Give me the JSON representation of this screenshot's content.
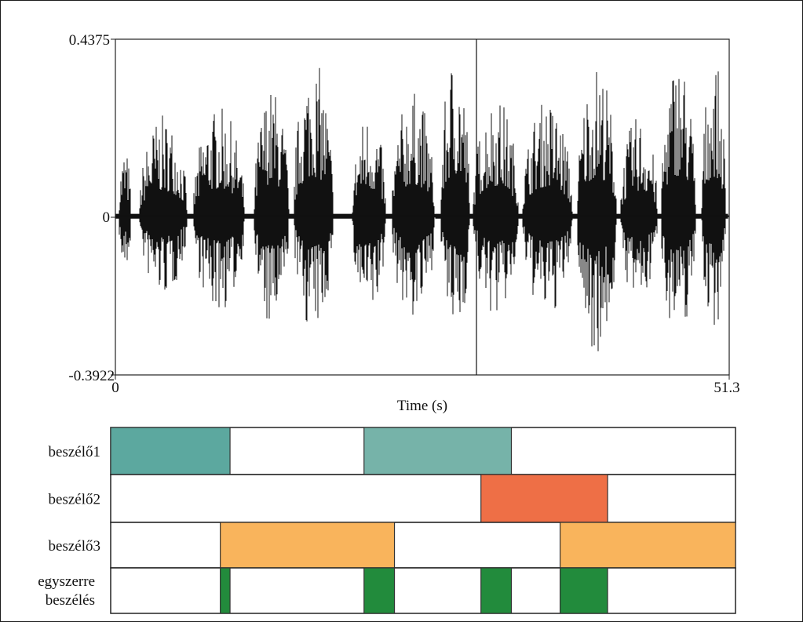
{
  "chart_data": [
    {
      "type": "waveform",
      "xlabel": "Time (s)",
      "xlim": [
        0,
        51.3
      ],
      "ylim": [
        -0.3922,
        0.4375
      ],
      "x_ticks": [
        "0",
        "51.3"
      ],
      "y_ticks": [
        "0.4375",
        "0",
        "-0.3922"
      ],
      "line_color": "#111111",
      "segments": [
        {
          "start": 0.3,
          "end": 1.3,
          "max": 0.17,
          "min": -0.15
        },
        {
          "start": 2.0,
          "end": 6.0,
          "max": 0.25,
          "min": -0.2
        },
        {
          "start": 6.5,
          "end": 10.8,
          "max": 0.27,
          "min": -0.24
        },
        {
          "start": 11.6,
          "end": 14.5,
          "max": 0.32,
          "min": -0.29
        },
        {
          "start": 14.9,
          "end": 18.2,
          "max": 0.39,
          "min": -0.29
        },
        {
          "start": 19.8,
          "end": 22.6,
          "max": 0.26,
          "min": -0.26
        },
        {
          "start": 23.1,
          "end": 26.7,
          "max": 0.31,
          "min": -0.26
        },
        {
          "start": 27.2,
          "end": 29.6,
          "max": 0.41,
          "min": -0.3
        },
        {
          "start": 29.9,
          "end": 33.7,
          "max": 0.3,
          "min": -0.25
        },
        {
          "start": 34.0,
          "end": 38.2,
          "max": 0.29,
          "min": -0.25
        },
        {
          "start": 38.6,
          "end": 41.9,
          "max": 0.38,
          "min": -0.34
        },
        {
          "start": 42.2,
          "end": 45.3,
          "max": 0.25,
          "min": -0.22
        },
        {
          "start": 45.6,
          "end": 48.5,
          "max": 0.4,
          "min": -0.3
        },
        {
          "start": 49.0,
          "end": 51.0,
          "max": 0.39,
          "min": -0.28
        }
      ]
    },
    {
      "type": "timeline",
      "xlim": [
        0,
        51.3
      ],
      "rows": [
        {
          "label": "beszélő1",
          "intervals": [
            [
              0,
              9.8,
              "#5ca89f"
            ],
            [
              20.8,
              32.9,
              "#76b3a9"
            ]
          ]
        },
        {
          "label": "beszélő2",
          "intervals": [
            [
              30.4,
              40.8,
              "#ee6f46"
            ]
          ]
        },
        {
          "label": "beszélő3",
          "intervals": [
            [
              9.0,
              23.3,
              "#f9b45c"
            ],
            [
              36.9,
              51.3,
              "#f9b45c"
            ]
          ]
        },
        {
          "label_lines": [
            "egyszerre",
            "beszélés"
          ],
          "intervals": [
            [
              9.0,
              9.8,
              "#228b3c"
            ],
            [
              20.8,
              23.3,
              "#228b3c"
            ],
            [
              30.4,
              32.9,
              "#228b3c"
            ],
            [
              36.9,
              40.8,
              "#228b3c"
            ]
          ]
        }
      ]
    }
  ]
}
